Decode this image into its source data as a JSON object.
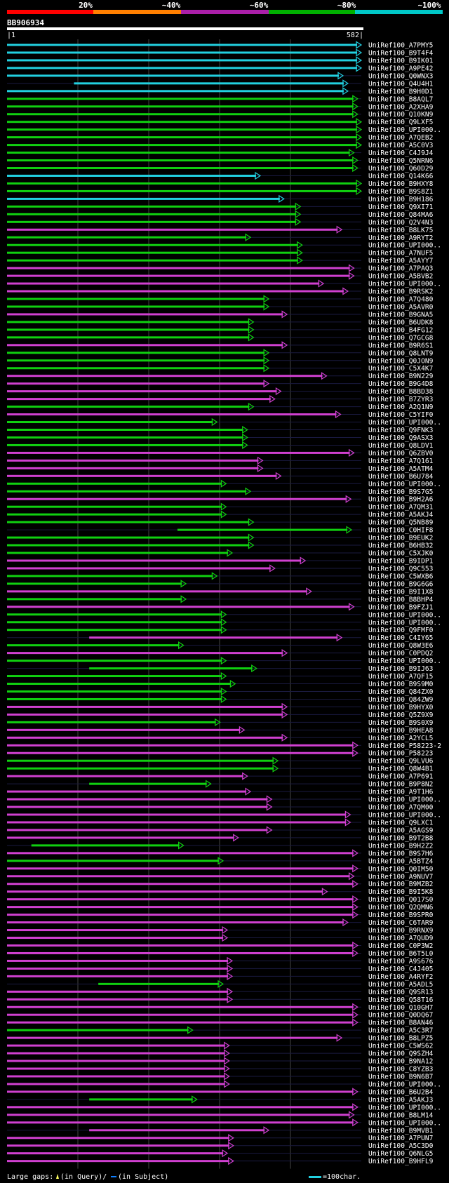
{
  "chart_data": {
    "type": "bar",
    "title": "BB906934",
    "query_start_label": "|1",
    "query_end_label": "582|",
    "query_length": 582,
    "legend": {
      "identity_ticks": [
        "20%",
        "~40%",
        "~60%",
        "~80%",
        "~100%"
      ],
      "identity_colors": [
        "#ff0000",
        "#ff7f00",
        "#aa1fa8",
        "#00b000",
        "#00c8c8"
      ],
      "footer_gaps_label": "Large gaps: ",
      "footer_query_label": "(in Query)/",
      "footer_subject_label": "(in Subject)",
      "scale_label": "=100char."
    },
    "colors": {
      "cyan": "#22d0e0",
      "green": "#10d010",
      "magenta": "#d040d0",
      "background": "#000000",
      "grid": "#444444",
      "triangle": "#ffff60"
    },
    "hits": [
      {
        "name": "UniRef100_A7PMY5",
        "start": 0,
        "end": 582,
        "color": "cyan"
      },
      {
        "name": "UniRef100_B9T4F4",
        "start": 0,
        "end": 582,
        "color": "cyan"
      },
      {
        "name": "UniRef100_B9IK01",
        "start": 0,
        "end": 582,
        "color": "cyan"
      },
      {
        "name": "UniRef100_A9PE42",
        "start": 0,
        "end": 582,
        "color": "cyan"
      },
      {
        "name": "UniRef100_Q0WNX3",
        "start": 0,
        "end": 552,
        "color": "cyan"
      },
      {
        "name": "UniRef100_Q4U4H1",
        "start": 110,
        "end": 560,
        "color": "cyan"
      },
      {
        "name": "UniRef100_B9H0D1",
        "start": 0,
        "end": 560,
        "color": "cyan"
      },
      {
        "name": "UniRef100_B8AQL7",
        "start": 0,
        "end": 576,
        "color": "green"
      },
      {
        "name": "UniRef100_A2XHA9",
        "start": 0,
        "end": 576,
        "color": "green"
      },
      {
        "name": "UniRef100_Q10KN9",
        "start": 0,
        "end": 576,
        "color": "green"
      },
      {
        "name": "UniRef100_Q9LXF5",
        "start": 0,
        "end": 582,
        "color": "green"
      },
      {
        "name": "UniRef100_UPI000..",
        "start": 0,
        "end": 582,
        "color": "green"
      },
      {
        "name": "UniRef100_A7QEB2",
        "start": 0,
        "end": 582,
        "color": "green"
      },
      {
        "name": "UniRef100_A5C0V3",
        "start": 0,
        "end": 582,
        "color": "green"
      },
      {
        "name": "UniRef100_C4J9J4",
        "start": 0,
        "end": 570,
        "color": "green"
      },
      {
        "name": "UniRef100_Q5NRN6",
        "start": 0,
        "end": 576,
        "color": "green"
      },
      {
        "name": "UniRef100_Q60D29",
        "start": 0,
        "end": 576,
        "color": "green"
      },
      {
        "name": "UniRef100_Q14K66",
        "start": 0,
        "end": 416,
        "color": "cyan"
      },
      {
        "name": "UniRef100_B9HXY8",
        "start": 0,
        "end": 582,
        "color": "green"
      },
      {
        "name": "UniRef100_B9S8Z1",
        "start": 0,
        "end": 582,
        "color": "green"
      },
      {
        "name": "UniRef100_B9H186",
        "start": 0,
        "end": 455,
        "color": "cyan"
      },
      {
        "name": "UniRef100_Q9XI71",
        "start": 0,
        "end": 482,
        "color": "green"
      },
      {
        "name": "UniRef100_Q84MA6",
        "start": 0,
        "end": 482,
        "color": "green"
      },
      {
        "name": "UniRef100_Q2V4N3",
        "start": 0,
        "end": 482,
        "color": "green"
      },
      {
        "name": "UniRef100_B8LK75",
        "start": 0,
        "end": 550,
        "color": "magenta"
      },
      {
        "name": "UniRef100_A9RYT2",
        "start": 0,
        "end": 400,
        "color": "green"
      },
      {
        "name": "UniRef100_UPI000..",
        "start": 0,
        "end": 485,
        "color": "green"
      },
      {
        "name": "UniRef100_A7NUF5",
        "start": 0,
        "end": 485,
        "color": "green"
      },
      {
        "name": "UniRef100_A5AYY7",
        "start": 0,
        "end": 485,
        "color": "green"
      },
      {
        "name": "UniRef100_A7PAQ3",
        "start": 0,
        "end": 570,
        "color": "magenta"
      },
      {
        "name": "UniRef100_A5BVB2",
        "start": 0,
        "end": 570,
        "color": "magenta"
      },
      {
        "name": "UniRef100_UPI000..",
        "start": 0,
        "end": 520,
        "color": "magenta"
      },
      {
        "name": "UniRef100_B9RSK2",
        "start": 0,
        "end": 560,
        "color": "magenta"
      },
      {
        "name": "UniRef100_A7Q480",
        "start": 0,
        "end": 430,
        "color": "green"
      },
      {
        "name": "UniRef100_A5AVR0",
        "start": 0,
        "end": 430,
        "color": "green"
      },
      {
        "name": "UniRef100_B9GNA5",
        "start": 0,
        "end": 460,
        "color": "magenta"
      },
      {
        "name": "UniRef100_B6UDK8",
        "start": 0,
        "end": 405,
        "color": "green"
      },
      {
        "name": "UniRef100_B4FG12",
        "start": 0,
        "end": 405,
        "color": "green"
      },
      {
        "name": "UniRef100_Q7GCG8",
        "start": 0,
        "end": 405,
        "color": "green"
      },
      {
        "name": "UniRef100_B9R6S1",
        "start": 0,
        "end": 460,
        "color": "magenta"
      },
      {
        "name": "UniRef100_Q8LNT9",
        "start": 0,
        "end": 430,
        "color": "green"
      },
      {
        "name": "UniRef100_Q0JON9",
        "start": 0,
        "end": 430,
        "color": "green"
      },
      {
        "name": "UniRef100_C5X4K7",
        "start": 0,
        "end": 430,
        "color": "green"
      },
      {
        "name": "UniRef100_B9N229",
        "start": 0,
        "end": 525,
        "color": "magenta"
      },
      {
        "name": "UniRef100_B9G4D8",
        "start": 0,
        "end": 430,
        "color": "magenta"
      },
      {
        "name": "UniRef100_B8BD38",
        "start": 0,
        "end": 450,
        "color": "magenta"
      },
      {
        "name": "UniRef100_B7ZYR3",
        "start": 0,
        "end": 440,
        "color": "magenta"
      },
      {
        "name": "UniRef100_A2Q1N9",
        "start": 0,
        "end": 405,
        "color": "green"
      },
      {
        "name": "UniRef100_C5YIF0",
        "start": 0,
        "end": 548,
        "color": "magenta"
      },
      {
        "name": "UniRef100_UPI000..",
        "start": 0,
        "end": 345,
        "color": "green"
      },
      {
        "name": "UniRef100_Q9FNK3",
        "start": 0,
        "end": 395,
        "color": "green"
      },
      {
        "name": "UniRef100_Q9ASX3",
        "start": 0,
        "end": 395,
        "color": "green"
      },
      {
        "name": "UniRef100_Q8LDV1",
        "start": 0,
        "end": 395,
        "color": "green"
      },
      {
        "name": "UniRef100_Q6ZBV0",
        "start": 0,
        "end": 570,
        "color": "magenta"
      },
      {
        "name": "UniRef100_A7Q161",
        "start": 0,
        "end": 420,
        "color": "magenta"
      },
      {
        "name": "UniRef100_A5ATM4",
        "start": 0,
        "end": 420,
        "color": "magenta"
      },
      {
        "name": "UniRef100_B6U784",
        "start": 0,
        "end": 450,
        "color": "magenta"
      },
      {
        "name": "UniRef100_UPI000..",
        "start": 0,
        "end": 360,
        "color": "green"
      },
      {
        "name": "UniRef100_B9S7G5",
        "start": 0,
        "end": 400,
        "color": "green"
      },
      {
        "name": "UniRef100_B9H2A6",
        "start": 0,
        "end": 565,
        "color": "magenta"
      },
      {
        "name": "UniRef100_A7QM31",
        "start": 0,
        "end": 360,
        "color": "green"
      },
      {
        "name": "UniRef100_A5AKJ4",
        "start": 0,
        "end": 360,
        "color": "green"
      },
      {
        "name": "UniRef100_Q5NB89",
        "start": 0,
        "end": 405,
        "color": "green"
      },
      {
        "name": "UniRef100_C0HIF8",
        "start": 280,
        "end": 566,
        "color": "green"
      },
      {
        "name": "UniRef100_B9EUK2",
        "start": 0,
        "end": 405,
        "color": "green"
      },
      {
        "name": "UniRef100_B6HB32",
        "start": 0,
        "end": 405,
        "color": "green"
      },
      {
        "name": "UniRef100_C5XJK0",
        "start": 0,
        "end": 370,
        "color": "green"
      },
      {
        "name": "UniRef100_B9IDP1",
        "start": 0,
        "end": 490,
        "color": "magenta"
      },
      {
        "name": "UniRef100_Q9C553",
        "start": 0,
        "end": 440,
        "color": "magenta"
      },
      {
        "name": "UniRef100_C5WXB6",
        "start": 0,
        "end": 345,
        "color": "green"
      },
      {
        "name": "UniRef100_B9G6G6",
        "start": 0,
        "end": 294,
        "color": "green"
      },
      {
        "name": "UniRef100_B9I1X8",
        "start": 0,
        "end": 500,
        "color": "magenta"
      },
      {
        "name": "UniRef100_B8BHP4",
        "start": 0,
        "end": 294,
        "color": "green"
      },
      {
        "name": "UniRef100_B9FZJ1",
        "start": 0,
        "end": 570,
        "color": "magenta"
      },
      {
        "name": "UniRef100_UPI000..",
        "start": 0,
        "end": 360,
        "color": "green"
      },
      {
        "name": "UniRef100_UPI000..",
        "start": 0,
        "end": 360,
        "color": "green"
      },
      {
        "name": "UniRef100_Q9FMF0",
        "start": 0,
        "end": 360,
        "color": "green"
      },
      {
        "name": "UniRef100_C4IY65",
        "start": 135,
        "end": 550,
        "color": "magenta"
      },
      {
        "name": "UniRef100_Q8W3E6",
        "start": 0,
        "end": 290,
        "color": "green"
      },
      {
        "name": "UniRef100_C0PDQ2",
        "start": 0,
        "end": 460,
        "color": "magenta"
      },
      {
        "name": "UniRef100_UPI000..",
        "start": 0,
        "end": 360,
        "color": "green"
      },
      {
        "name": "UniRef100_B9IJ63",
        "start": 135,
        "end": 410,
        "color": "green"
      },
      {
        "name": "UniRef100_A7QF15",
        "start": 0,
        "end": 360,
        "color": "green"
      },
      {
        "name": "UniRef100_B9S9M0",
        "start": 0,
        "end": 375,
        "color": "green"
      },
      {
        "name": "UniRef100_Q84ZX0",
        "start": 0,
        "end": 360,
        "color": "green"
      },
      {
        "name": "UniRef100_Q84ZW9",
        "start": 0,
        "end": 360,
        "color": "green"
      },
      {
        "name": "UniRef100_B9HYX0",
        "start": 0,
        "end": 460,
        "color": "magenta"
      },
      {
        "name": "UniRef100_Q5Z9X9",
        "start": 0,
        "end": 460,
        "color": "magenta"
      },
      {
        "name": "UniRef100_B9S0X9",
        "start": 0,
        "end": 350,
        "color": "green"
      },
      {
        "name": "UniRef100_B9HEA8",
        "start": 0,
        "end": 390,
        "color": "magenta"
      },
      {
        "name": "UniRef100_A2YCL5",
        "start": 0,
        "end": 460,
        "color": "magenta"
      },
      {
        "name": "UniRef100_P58223-2",
        "start": 0,
        "end": 576,
        "color": "magenta"
      },
      {
        "name": "UniRef100_P58223",
        "start": 0,
        "end": 576,
        "color": "magenta"
      },
      {
        "name": "UniRef100_Q9LVU6",
        "start": 0,
        "end": 445,
        "color": "green"
      },
      {
        "name": "UniRef100_Q8W4B1",
        "start": 0,
        "end": 445,
        "color": "green"
      },
      {
        "name": "UniRef100_A7P691",
        "start": 0,
        "end": 395,
        "color": "magenta"
      },
      {
        "name": "UniRef100_B9P8N2",
        "start": 135,
        "end": 335,
        "color": "green"
      },
      {
        "name": "UniRef100_A9T1H6",
        "start": 0,
        "end": 400,
        "color": "magenta"
      },
      {
        "name": "UniRef100_UPI000..",
        "start": 0,
        "end": 435,
        "color": "magenta"
      },
      {
        "name": "UniRef100_A7QM00",
        "start": 0,
        "end": 435,
        "color": "magenta"
      },
      {
        "name": "UniRef100_UPI000..",
        "start": 0,
        "end": 564,
        "color": "magenta"
      },
      {
        "name": "UniRef100_Q9LXC1",
        "start": 0,
        "end": 564,
        "color": "magenta"
      },
      {
        "name": "UniRef100_A5AGS9",
        "start": 0,
        "end": 435,
        "color": "magenta"
      },
      {
        "name": "UniRef100_B9T2B8",
        "start": 0,
        "end": 380,
        "color": "magenta"
      },
      {
        "name": "UniRef100_B9H2Z2",
        "start": 40,
        "end": 290,
        "color": "green"
      },
      {
        "name": "UniRef100_B9S7H6",
        "start": 0,
        "end": 576,
        "color": "magenta"
      },
      {
        "name": "UniRef100_A5BTZ4",
        "start": 0,
        "end": 355,
        "color": "green"
      },
      {
        "name": "UniRef100_Q0IM50",
        "start": 0,
        "end": 576,
        "color": "magenta"
      },
      {
        "name": "UniRef100_A9NUV7",
        "start": 0,
        "end": 570,
        "color": "magenta"
      },
      {
        "name": "UniRef100_B9MZB2",
        "start": 0,
        "end": 576,
        "color": "magenta"
      },
      {
        "name": "UniRef100_B9I5K8",
        "start": 0,
        "end": 526,
        "color": "magenta"
      },
      {
        "name": "UniRef100_Q017S0",
        "start": 0,
        "end": 576,
        "color": "magenta"
      },
      {
        "name": "UniRef100_Q2QMN6",
        "start": 0,
        "end": 576,
        "color": "magenta"
      },
      {
        "name": "UniRef100_B9SPR0",
        "start": 0,
        "end": 576,
        "color": "magenta"
      },
      {
        "name": "UniRef100_C6TAR9",
        "start": 0,
        "end": 560,
        "color": "magenta"
      },
      {
        "name": "UniRef100_B9RNX9",
        "start": 0,
        "end": 362,
        "color": "magenta"
      },
      {
        "name": "UniRef100_A7QUD9",
        "start": 0,
        "end": 362,
        "color": "magenta"
      },
      {
        "name": "UniRef100_C0P3W2",
        "start": 0,
        "end": 576,
        "color": "magenta"
      },
      {
        "name": "UniRef100_B6T5L0",
        "start": 0,
        "end": 576,
        "color": "magenta"
      },
      {
        "name": "UniRef100_A9S676",
        "start": 0,
        "end": 370,
        "color": "magenta"
      },
      {
        "name": "UniRef100_C4J405",
        "start": 0,
        "end": 370,
        "color": "magenta"
      },
      {
        "name": "UniRef100_A4RYF2",
        "start": 0,
        "end": 370,
        "color": "magenta"
      },
      {
        "name": "UniRef100_A5ADL5",
        "start": 150,
        "end": 355,
        "color": "green"
      },
      {
        "name": "UniRef100_Q9SR13",
        "start": 0,
        "end": 370,
        "color": "magenta"
      },
      {
        "name": "UniRef100_Q58T16",
        "start": 0,
        "end": 370,
        "color": "magenta"
      },
      {
        "name": "UniRef100_Q10GH7",
        "start": 0,
        "end": 576,
        "color": "magenta"
      },
      {
        "name": "UniRef100_Q0DQ67",
        "start": 0,
        "end": 576,
        "color": "magenta"
      },
      {
        "name": "UniRef100_B8AN46",
        "start": 0,
        "end": 576,
        "color": "magenta"
      },
      {
        "name": "UniRef100_A5C3R7",
        "start": 0,
        "end": 305,
        "color": "green"
      },
      {
        "name": "UniRef100_B8LPZ5",
        "start": 0,
        "end": 550,
        "color": "magenta"
      },
      {
        "name": "UniRef100_C5WS62",
        "start": 0,
        "end": 365,
        "color": "magenta"
      },
      {
        "name": "UniRef100_Q9SZH4",
        "start": 0,
        "end": 365,
        "color": "magenta"
      },
      {
        "name": "UniRef100_B9NA12",
        "start": 0,
        "end": 365,
        "color": "magenta"
      },
      {
        "name": "UniRef100_C8YZB3",
        "start": 0,
        "end": 365,
        "color": "magenta"
      },
      {
        "name": "UniRef100_B9N6B7",
        "start": 0,
        "end": 365,
        "color": "magenta"
      },
      {
        "name": "UniRef100_UPI000..",
        "start": 0,
        "end": 365,
        "color": "magenta"
      },
      {
        "name": "UniRef100_B6U2B4",
        "start": 0,
        "end": 576,
        "color": "magenta"
      },
      {
        "name": "UniRef100_A5AKJ3",
        "start": 135,
        "end": 312,
        "color": "green"
      },
      {
        "name": "UniRef100_UPI000..",
        "start": 0,
        "end": 576,
        "color": "magenta"
      },
      {
        "name": "UniRef100_B8LM14",
        "start": 0,
        "end": 570,
        "color": "magenta"
      },
      {
        "name": "UniRef100_UPI000..",
        "start": 0,
        "end": 576,
        "color": "magenta"
      },
      {
        "name": "UniRef100_B9MVB1",
        "start": 135,
        "end": 430,
        "color": "magenta"
      },
      {
        "name": "UniRef100_A7PUN7",
        "start": 0,
        "end": 372,
        "color": "magenta"
      },
      {
        "name": "UniRef100_A5C3D0",
        "start": 0,
        "end": 372,
        "color": "magenta"
      },
      {
        "name": "UniRef100_Q6NLG5",
        "start": 0,
        "end": 362,
        "color": "magenta"
      },
      {
        "name": "UniRef100_B9HFL9",
        "start": 0,
        "end": 372,
        "color": "magenta"
      }
    ]
  }
}
